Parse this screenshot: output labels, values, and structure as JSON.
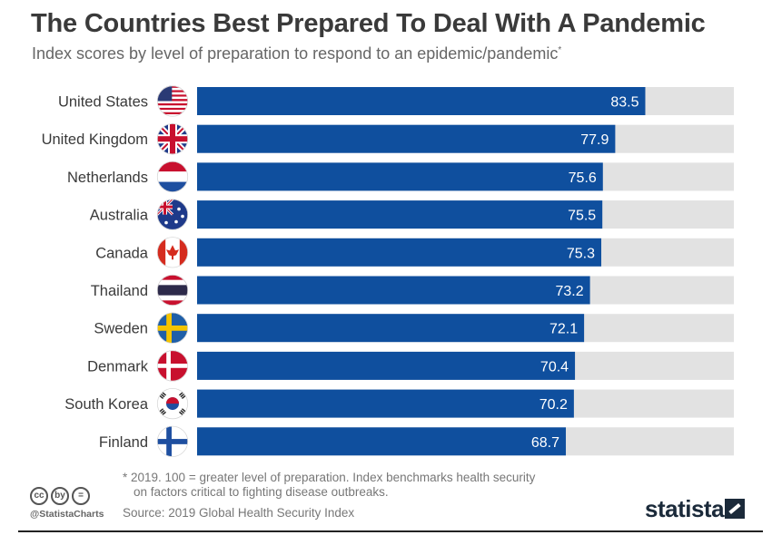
{
  "header": {
    "title": "The Countries Best Prepared To Deal With A Pandemic",
    "subtitle": "Index scores by level of preparation to respond to an epidemic/pandemic",
    "subtitle_mark": "*"
  },
  "chart_data": {
    "type": "bar",
    "orientation": "horizontal",
    "title": "The Countries Best Prepared To Deal With A Pandemic",
    "categories": [
      "United States",
      "United Kingdom",
      "Netherlands",
      "Australia",
      "Canada",
      "Thailand",
      "Sweden",
      "Denmark",
      "South Korea",
      "Finland"
    ],
    "values": [
      83.5,
      77.9,
      75.6,
      75.5,
      75.3,
      73.2,
      72.1,
      70.4,
      70.2,
      68.7
    ],
    "value_labels": [
      "83.5",
      "77.9",
      "75.6",
      "75.5",
      "75.3",
      "73.2",
      "72.1",
      "70.4",
      "70.2",
      "68.7"
    ],
    "flags": [
      "us-flag",
      "uk-flag",
      "netherlands-flag",
      "australia-flag",
      "canada-flag",
      "thailand-flag",
      "sweden-flag",
      "denmark-flag",
      "south-korea-flag",
      "finland-flag"
    ],
    "xlim": [
      0,
      100
    ],
    "grid": false,
    "colors": {
      "bar": "#0f4f9e",
      "track": "#e2e2e2",
      "value_label": "#ffffff"
    }
  },
  "footer": {
    "footnote_line1": "* 2019. 100 = greater level of preparation. Index benchmarks health security",
    "footnote_line2": "on factors critical to fighting disease outbreaks.",
    "source": "Source: 2019 Global Health Security Index",
    "handle": "@StatistaCharts",
    "brand": "statista",
    "license_icons": [
      "cc",
      "by",
      "="
    ]
  }
}
